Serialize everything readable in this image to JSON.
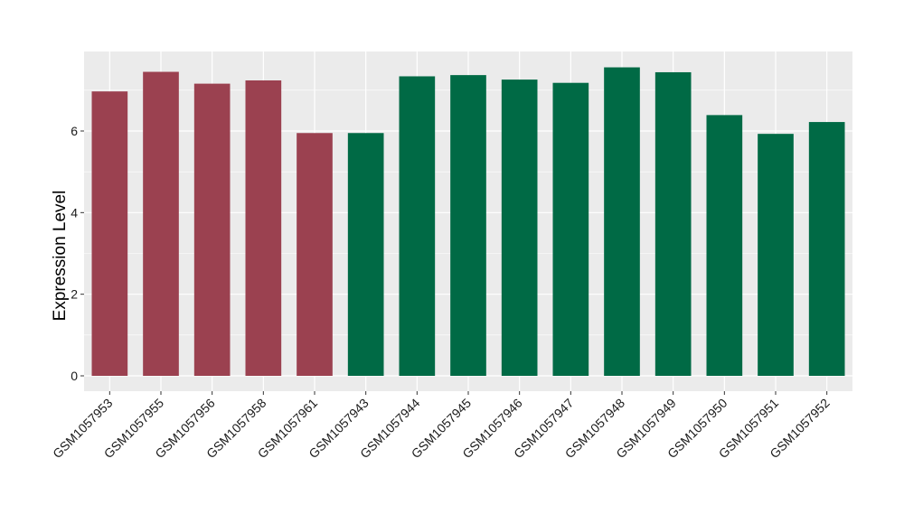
{
  "chart_data": {
    "type": "bar",
    "title": "",
    "xlabel": "",
    "ylabel": "Expression Level",
    "ylim": [
      0,
      7.8
    ],
    "yticks": [
      0,
      2,
      4,
      6
    ],
    "grid": true,
    "background": "#ebebeb",
    "gridline_color": "#ffffff",
    "categories": [
      "GSM1057953",
      "GSM1057955",
      "GSM1057956",
      "GSM1057958",
      "GSM1057961",
      "GSM1057943",
      "GSM1057944",
      "GSM1057945",
      "GSM1057946",
      "GSM1057947",
      "GSM1057948",
      "GSM1057949",
      "GSM1057950",
      "GSM1057951",
      "GSM1057952"
    ],
    "values": [
      6.97,
      7.45,
      7.16,
      7.24,
      5.95,
      5.95,
      7.34,
      7.37,
      7.26,
      7.18,
      7.56,
      7.44,
      6.39,
      5.93,
      6.22
    ],
    "colors": [
      "#9b4150",
      "#9b4150",
      "#9b4150",
      "#9b4150",
      "#9b4150",
      "#006a45",
      "#006a45",
      "#006a45",
      "#006a45",
      "#006a45",
      "#006a45",
      "#006a45",
      "#006a45",
      "#006a45",
      "#006a45"
    ]
  }
}
